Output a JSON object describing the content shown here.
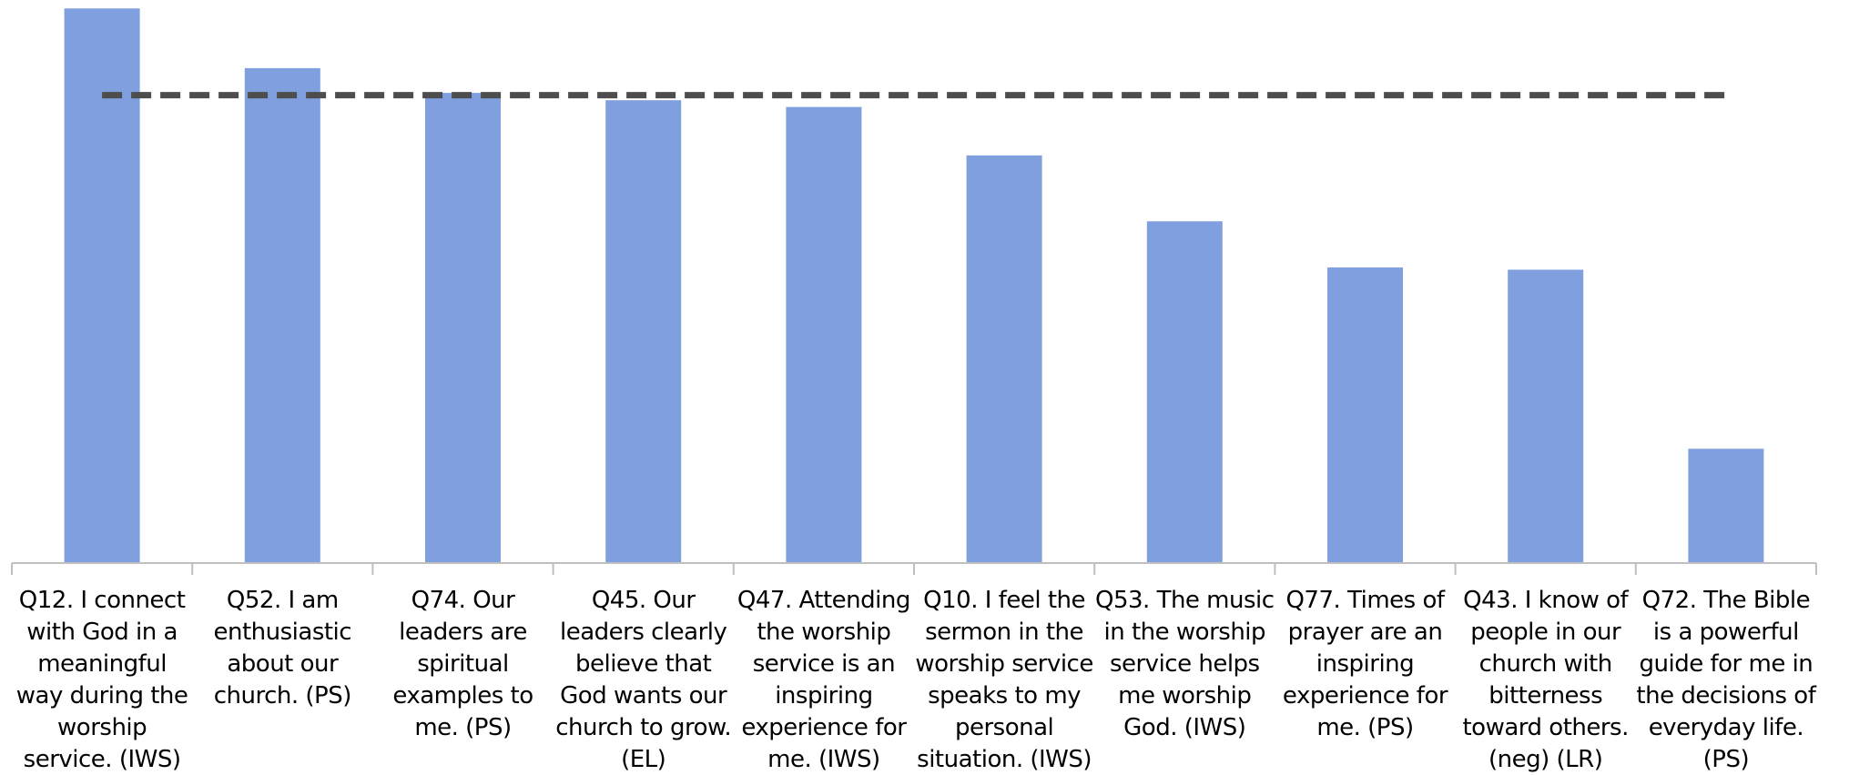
{
  "chart_data": {
    "type": "bar",
    "categories": [
      "Q12. I connect with God in a meaningful way during the worship service. (IWS)",
      "Q52. I am enthusiastic about our church. (PS)",
      "Q74. Our leaders are spiritual examples to me. (PS)",
      "Q45. Our leaders clearly believe that God wants our church to grow. (EL)",
      "Q47. Attending the worship service is an inspiring experience for me. (IWS)",
      "Q10. I feel the sermon in the worship service speaks to my personal situation. (IWS)",
      "Q53. The music in the worship service helps me worship God. (IWS)",
      "Q77. Times of prayer are an inspiring experience for me. (PS)",
      "Q43. I know of people in our church with bitterness toward others. (neg) (LR)",
      "Q72. The Bible is a powerful guide for me in the decisions of everyday life. (PS)"
    ],
    "values": [
      98.5,
      87.9,
      83.5,
      82.2,
      81.0,
      72.4,
      60.7,
      52.5,
      52.1,
      20.3
    ],
    "color": "#7f9fdf",
    "ylim": [
      0,
      100
    ],
    "reference_line": 83.1,
    "reference_color": "#4d4d4d"
  }
}
